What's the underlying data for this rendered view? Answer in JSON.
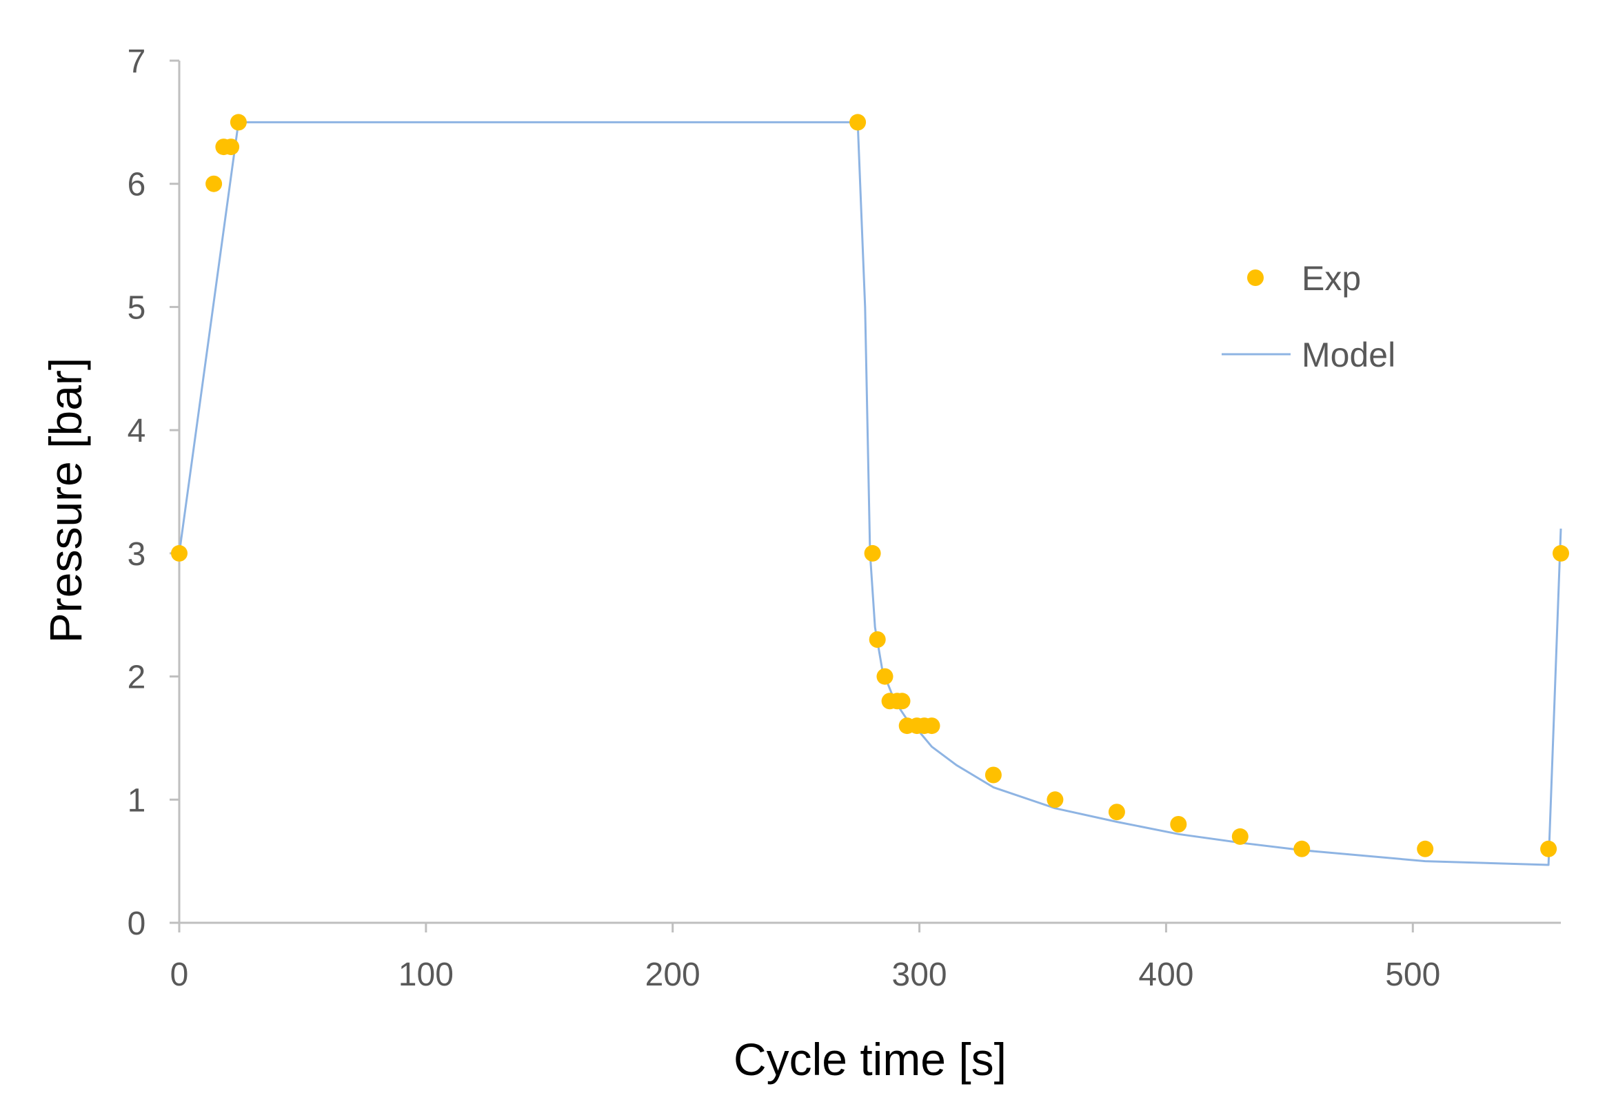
{
  "chart_data": {
    "type": "scatter",
    "title": "",
    "xlabel": "Cycle time [s]",
    "ylabel": "Pressure [bar]",
    "xlim": [
      0,
      560
    ],
    "ylim": [
      0,
      7
    ],
    "xticks": [
      0,
      100,
      200,
      300,
      400,
      500
    ],
    "yticks": [
      0,
      1,
      2,
      3,
      4,
      5,
      6,
      7
    ],
    "grid": false,
    "legend_position": "right",
    "colors": {
      "exp": "#FFC000",
      "model": "#8EB4E3",
      "axis": "#BFBFBF"
    },
    "series": [
      {
        "name": "Exp",
        "kind": "scatter",
        "x": [
          0,
          14,
          18,
          21,
          24,
          275,
          281,
          283,
          286,
          288,
          291,
          293,
          295,
          299,
          302,
          305,
          330,
          355,
          380,
          405,
          430,
          455,
          505,
          555,
          560
        ],
        "y": [
          3,
          6,
          6.3,
          6.3,
          6.5,
          6.5,
          3,
          2.3,
          2,
          1.8,
          1.8,
          1.8,
          1.6,
          1.6,
          1.6,
          1.6,
          1.2,
          1.0,
          0.9,
          0.8,
          0.7,
          0.6,
          0.6,
          0.6,
          3
        ]
      },
      {
        "name": "Model",
        "kind": "line",
        "x": [
          0,
          24,
          275,
          278,
          280,
          282,
          285,
          290,
          295,
          300,
          305,
          315,
          330,
          355,
          380,
          405,
          430,
          455,
          505,
          555,
          560
        ],
        "y": [
          3,
          6.5,
          6.5,
          5.0,
          3.0,
          2.4,
          2.05,
          1.8,
          1.65,
          1.55,
          1.43,
          1.28,
          1.1,
          0.93,
          0.82,
          0.72,
          0.65,
          0.59,
          0.5,
          0.47,
          3.2
        ]
      }
    ]
  }
}
